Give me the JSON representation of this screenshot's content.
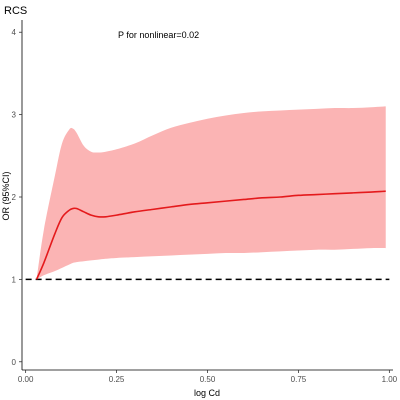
{
  "chart_data": {
    "type": "line",
    "title": "RCS",
    "xlabel": "log Cd",
    "ylabel": "OR (95%CI)",
    "annotation": "P for nonlinear=0.02",
    "xlim": [
      -0.01,
      1.01
    ],
    "ylim": [
      -0.1,
      4.1
    ],
    "x_ticks": [
      0.0,
      0.25,
      0.5,
      0.75,
      1.0
    ],
    "x_tick_labels": [
      "0.00",
      "0.25",
      "0.50",
      "0.75",
      "1.00"
    ],
    "y_ticks": [
      0,
      1,
      2,
      3,
      4
    ],
    "y_tick_labels": [
      "0",
      "1",
      "2",
      "3",
      "4"
    ],
    "reference_line": {
      "y": 1,
      "style": "dashed",
      "color": "#000000"
    },
    "grid": false,
    "series": [
      {
        "color": "#e41a1c",
        "ci_color": "#fbb4b4",
        "x": [
          0.03,
          0.05,
          0.08,
          0.1,
          0.12,
          0.13,
          0.14,
          0.16,
          0.18,
          0.2,
          0.22,
          0.25,
          0.3,
          0.35,
          0.4,
          0.45,
          0.5,
          0.55,
          0.6,
          0.65,
          0.7,
          0.75,
          0.8,
          0.85,
          0.9,
          0.95,
          0.99
        ],
        "y": [
          1.0,
          1.2,
          1.55,
          1.75,
          1.84,
          1.86,
          1.86,
          1.82,
          1.78,
          1.76,
          1.76,
          1.78,
          1.82,
          1.85,
          1.88,
          1.91,
          1.93,
          1.95,
          1.97,
          1.99,
          2.0,
          2.02,
          2.03,
          2.04,
          2.05,
          2.06,
          2.07
        ],
        "lower": [
          1.0,
          1.05,
          1.1,
          1.14,
          1.18,
          1.2,
          1.21,
          1.22,
          1.23,
          1.24,
          1.25,
          1.26,
          1.27,
          1.28,
          1.29,
          1.3,
          1.31,
          1.32,
          1.32,
          1.33,
          1.34,
          1.35,
          1.36,
          1.36,
          1.37,
          1.38,
          1.38
        ],
        "upper": [
          1.0,
          1.6,
          2.25,
          2.65,
          2.82,
          2.83,
          2.78,
          2.62,
          2.55,
          2.54,
          2.55,
          2.58,
          2.65,
          2.75,
          2.84,
          2.9,
          2.95,
          2.99,
          3.02,
          3.04,
          3.05,
          3.06,
          3.07,
          3.08,
          3.08,
          3.09,
          3.1
        ]
      }
    ]
  }
}
